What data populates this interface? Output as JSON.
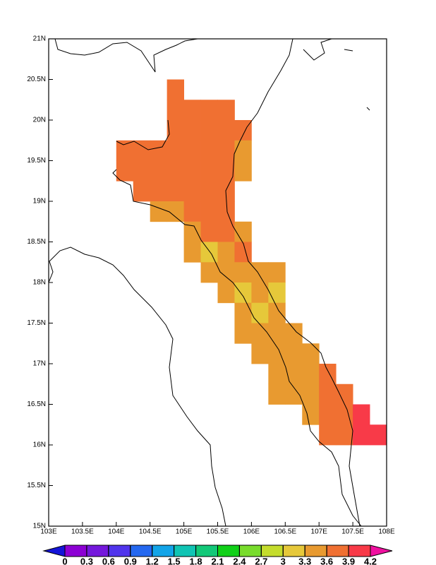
{
  "chart_data": {
    "type": "heatmap",
    "xlim": [
      103,
      108
    ],
    "ylim": [
      15,
      21
    ],
    "xticks": [
      {
        "value": 103,
        "label": "103E"
      },
      {
        "value": 103.5,
        "label": "103.5E"
      },
      {
        "value": 104,
        "label": "104E"
      },
      {
        "value": 104.5,
        "label": "104.5E"
      },
      {
        "value": 105,
        "label": "105E"
      },
      {
        "value": 105.5,
        "label": "105.5E"
      },
      {
        "value": 106,
        "label": "106E"
      },
      {
        "value": 106.5,
        "label": "106.5E"
      },
      {
        "value": 107,
        "label": "107E"
      },
      {
        "value": 107.5,
        "label": "107.5E"
      },
      {
        "value": 108,
        "label": "108E"
      }
    ],
    "yticks": [
      {
        "value": 15,
        "label": "15N"
      },
      {
        "value": 15.5,
        "label": "15.5N"
      },
      {
        "value": 16,
        "label": "16N"
      },
      {
        "value": 16.5,
        "label": "16.5N"
      },
      {
        "value": 17,
        "label": "17N"
      },
      {
        "value": 17.5,
        "label": "17.5N"
      },
      {
        "value": 18,
        "label": "18N"
      },
      {
        "value": 18.5,
        "label": "18.5N"
      },
      {
        "value": 19,
        "label": "19N"
      },
      {
        "value": 19.5,
        "label": "19.5N"
      },
      {
        "value": 20,
        "label": "20N"
      },
      {
        "value": 20.5,
        "label": "20.5N"
      },
      {
        "value": 21,
        "label": "21N"
      }
    ],
    "cells": [
      [
        104.75,
        20.25,
        3.75
      ],
      [
        104.75,
        20,
        3.75
      ],
      [
        105,
        20,
        3.75
      ],
      [
        105.25,
        20,
        3.75
      ],
      [
        105.5,
        20,
        3.75
      ],
      [
        104.75,
        19.75,
        3.75
      ],
      [
        105,
        19.75,
        3.75
      ],
      [
        105.25,
        19.75,
        3.75
      ],
      [
        105.5,
        19.75,
        3.75
      ],
      [
        105.75,
        19.75,
        3.75
      ],
      [
        104,
        19.5,
        3.75
      ],
      [
        104.25,
        19.5,
        3.75
      ],
      [
        104.5,
        19.5,
        3.75
      ],
      [
        104.75,
        19.5,
        3.75
      ],
      [
        105,
        19.5,
        3.75
      ],
      [
        105.25,
        19.5,
        3.75
      ],
      [
        105.5,
        19.5,
        3.75
      ],
      [
        105.75,
        19.5,
        3.45
      ],
      [
        104,
        19.25,
        3.75
      ],
      [
        104.25,
        19.25,
        3.75
      ],
      [
        104.5,
        19.25,
        3.75
      ],
      [
        104.75,
        19.25,
        3.75
      ],
      [
        105,
        19.25,
        3.75
      ],
      [
        105.25,
        19.25,
        3.75
      ],
      [
        105.5,
        19.25,
        3.75
      ],
      [
        105.75,
        19.25,
        3.45
      ],
      [
        104.25,
        19,
        3.75
      ],
      [
        104.5,
        19,
        3.75
      ],
      [
        104.75,
        19,
        3.75
      ],
      [
        105,
        19,
        3.75
      ],
      [
        105.25,
        19,
        3.75
      ],
      [
        105.5,
        19,
        3.75
      ],
      [
        104.5,
        18.75,
        3.45
      ],
      [
        104.75,
        18.75,
        3.45
      ],
      [
        105,
        18.75,
        3.75
      ],
      [
        105.25,
        18.75,
        3.75
      ],
      [
        105.5,
        18.75,
        3.75
      ],
      [
        105,
        18.5,
        3.45
      ],
      [
        105.25,
        18.5,
        3.75
      ],
      [
        105.5,
        18.5,
        3.75
      ],
      [
        105.75,
        18.5,
        3.45
      ],
      [
        105,
        18.25,
        3.45
      ],
      [
        105.25,
        18.25,
        3.15
      ],
      [
        105.5,
        18.25,
        3.45
      ],
      [
        105.75,
        18.25,
        3.75
      ],
      [
        105.25,
        18,
        3.45
      ],
      [
        105.5,
        18,
        3.45
      ],
      [
        105.75,
        18,
        3.45
      ],
      [
        106,
        18,
        3.45
      ],
      [
        106.25,
        18,
        3.45
      ],
      [
        105.5,
        17.75,
        3.45
      ],
      [
        105.75,
        17.75,
        3.15
      ],
      [
        106,
        17.75,
        3.45
      ],
      [
        106.25,
        17.75,
        3.15
      ],
      [
        105.75,
        17.5,
        3.45
      ],
      [
        106,
        17.5,
        3.15
      ],
      [
        106.25,
        17.5,
        3.45
      ],
      [
        105.75,
        17.25,
        3.45
      ],
      [
        106,
        17.25,
        3.45
      ],
      [
        106.25,
        17.25,
        3.45
      ],
      [
        106.5,
        17.25,
        3.45
      ],
      [
        106,
        17,
        3.45
      ],
      [
        106.25,
        17,
        3.45
      ],
      [
        106.5,
        17,
        3.45
      ],
      [
        106.75,
        17,
        3.45
      ],
      [
        106.25,
        16.75,
        3.45
      ],
      [
        106.5,
        16.75,
        3.45
      ],
      [
        106.75,
        16.75,
        3.45
      ],
      [
        107,
        16.75,
        3.75
      ],
      [
        106.25,
        16.5,
        3.45
      ],
      [
        106.5,
        16.5,
        3.45
      ],
      [
        106.75,
        16.5,
        3.45
      ],
      [
        107,
        16.5,
        3.75
      ],
      [
        107.25,
        16.5,
        3.75
      ],
      [
        106.75,
        16.25,
        3.45
      ],
      [
        107,
        16.25,
        3.75
      ],
      [
        107.25,
        16.25,
        3.75
      ],
      [
        107.5,
        16.25,
        4.05
      ],
      [
        107,
        16,
        3.75
      ],
      [
        107.25,
        16,
        3.75
      ],
      [
        107.5,
        16,
        4.05
      ],
      [
        107.75,
        16,
        4.05
      ]
    ],
    "colorbar": {
      "levels": [
        0,
        0.3,
        0.6,
        0.9,
        1.2,
        1.5,
        1.8,
        2.1,
        2.4,
        2.7,
        3,
        3.3,
        3.6,
        3.9,
        4.2
      ],
      "colors": [
        "#1414d8",
        "#8c00d4",
        "#7418dc",
        "#5034ec",
        "#2468f0",
        "#12a4e8",
        "#10c4b4",
        "#12c878",
        "#10d018",
        "#78dc2c",
        "#c4dc2c",
        "#e6c83a",
        "#e89a30",
        "#f07032",
        "#f83a48",
        "#f010a0"
      ]
    }
  }
}
